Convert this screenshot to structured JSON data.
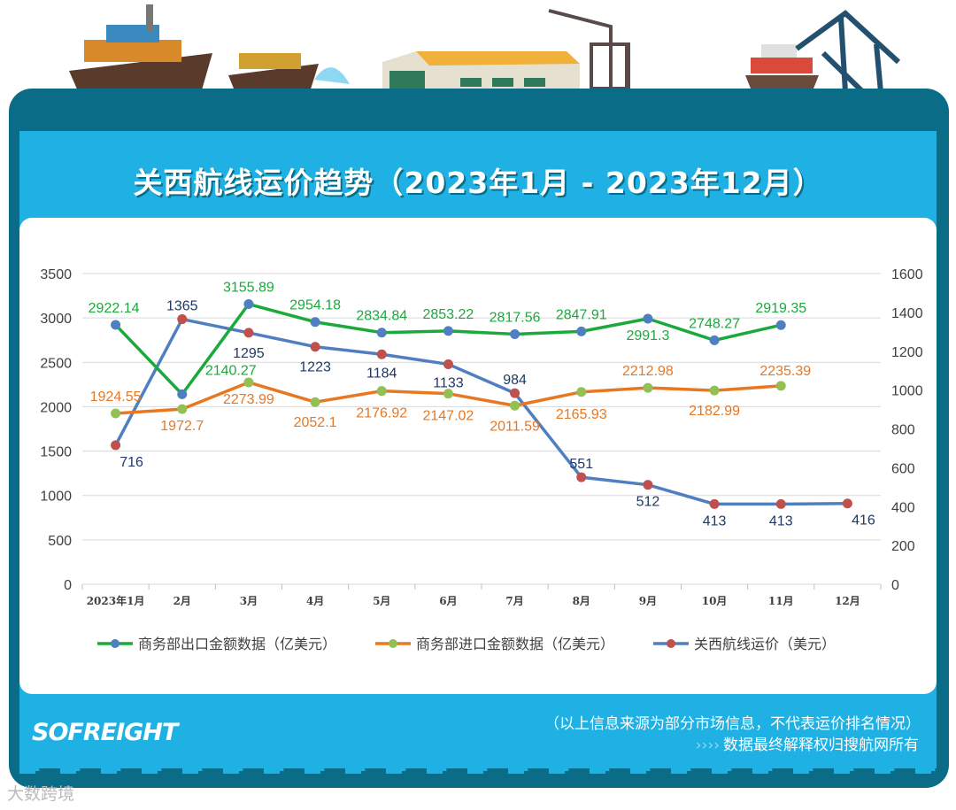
{
  "header": {
    "title": "关西航线运价趋势（2023年1月 - 2023年12月）"
  },
  "footer": {
    "logo": "SOFREIGHT",
    "note": "（以上信息来源为部分市场信息，不代表运价排名情况）",
    "arrows": "››››",
    "rights": "数据最终解释权归搜航网所有",
    "watermark": "大数跨境"
  },
  "colors": {
    "frame": "#0b6c88",
    "panel": "#1fb1e3",
    "export": "#1aaa3c",
    "import": "#e87722",
    "freight": "#4f7fc0"
  },
  "chart_data": {
    "type": "line",
    "categories": [
      "2023年1月",
      "2月",
      "3月",
      "4月",
      "5月",
      "6月",
      "7月",
      "8月",
      "9月",
      "10月",
      "11月",
      "12月"
    ],
    "y_left": {
      "ticks": [
        0,
        500,
        1000,
        1500,
        2000,
        2500,
        3000,
        3500
      ],
      "range": [
        0,
        3500
      ]
    },
    "y_right": {
      "ticks": [
        0,
        200,
        400,
        600,
        800,
        1000,
        1200,
        1400,
        1600
      ],
      "range": [
        0,
        1600
      ]
    },
    "grid": true,
    "legend_position": "bottom",
    "series": [
      {
        "name": "商务部出口金额数据（亿美元）",
        "axis": "left",
        "line_color": "#1aaa3c",
        "marker_color": "#4f7fc0",
        "label_color": "#1aaa3c",
        "values": [
          2922.14,
          2140.27,
          3155.89,
          2954.18,
          2834.84,
          2853.22,
          2817.56,
          2847.91,
          2991.3,
          2748.27,
          2919.35,
          null
        ]
      },
      {
        "name": "商务部进口金额数据（亿美元）",
        "axis": "left",
        "line_color": "#e87722",
        "marker_color": "#93c055",
        "label_color": "#e87722",
        "values": [
          1924.55,
          1972.7,
          2273.99,
          2052.1,
          2176.92,
          2147.02,
          2011.59,
          2165.93,
          2212.98,
          2182.99,
          2235.39,
          null
        ]
      },
      {
        "name": "关西航线运价（美元）",
        "axis": "right",
        "line_color": "#4f7fc0",
        "marker_color": "#c0504d",
        "label_color": "#1f3864",
        "values": [
          716,
          1365,
          1295,
          1223,
          1184,
          1133,
          984,
          551,
          512,
          413,
          413,
          416
        ]
      }
    ]
  }
}
